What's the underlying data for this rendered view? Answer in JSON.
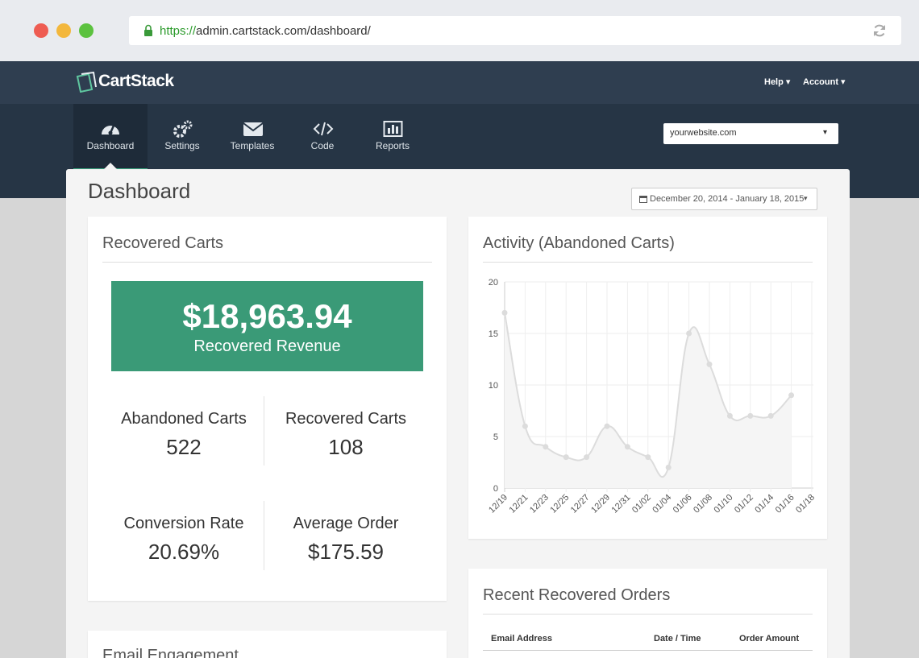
{
  "browser": {
    "url_scheme": "https://",
    "url_rest": "admin.cartstack.com/dashboard/"
  },
  "header": {
    "logo": "CartStack",
    "help": "Help",
    "account": "Account"
  },
  "nav": {
    "items": [
      "Dashboard",
      "Settings",
      "Templates",
      "Code",
      "Reports"
    ],
    "site_select": "yourwebsite.com"
  },
  "page": {
    "title": "Dashboard",
    "date_range": "December 20, 2014 - January 18, 2015"
  },
  "recovered": {
    "title": "Recovered Carts",
    "revenue": "$18,963.94",
    "revenue_label": "Recovered Revenue",
    "stats": [
      {
        "label": "Abandoned Carts",
        "value": "522"
      },
      {
        "label": "Recovered Carts",
        "value": "108"
      },
      {
        "label": "Conversion Rate",
        "value": "20.69%"
      },
      {
        "label": "Average Order",
        "value": "$175.59"
      }
    ]
  },
  "email": {
    "title": "Email Engagement"
  },
  "orders": {
    "title": "Recent Recovered Orders",
    "columns": [
      "Email Address",
      "Date / Time",
      "Order Amount"
    ]
  },
  "chart_data": {
    "type": "line",
    "title": "Activity (Abandoned Carts)",
    "categories": [
      "12/19",
      "12/21",
      "12/23",
      "12/25",
      "12/27",
      "12/29",
      "12/31",
      "01/02",
      "01/04",
      "01/06",
      "01/08",
      "01/10",
      "01/12",
      "01/14",
      "01/16",
      "01/18"
    ],
    "values": [
      17,
      6,
      4,
      3,
      3,
      6,
      4,
      3,
      2,
      15,
      12,
      7,
      7,
      7,
      9,
      null
    ],
    "color": "#dcdcdc",
    "ylim": [
      0,
      20
    ],
    "yticks": [
      0,
      5,
      10,
      15,
      20
    ],
    "grid": true
  }
}
